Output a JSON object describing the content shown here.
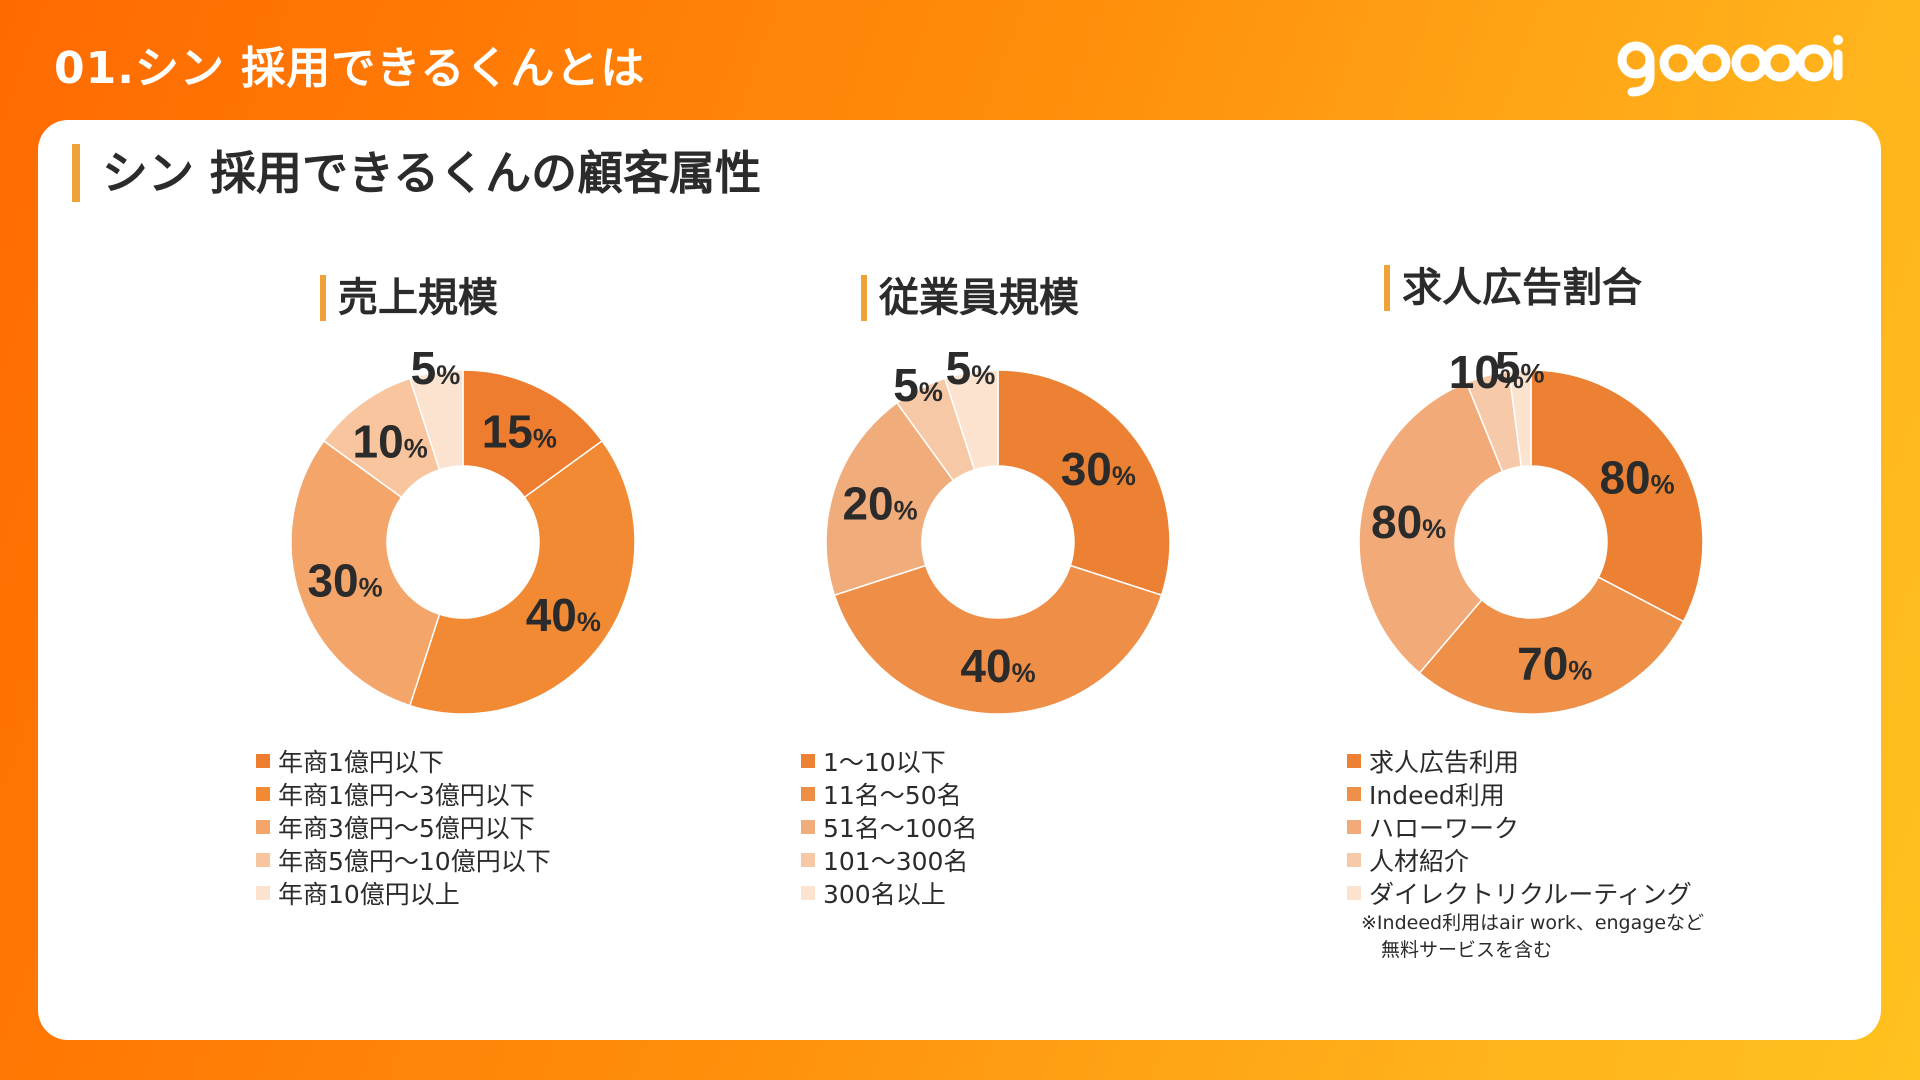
{
  "header": {
    "title": "01.シン 採用できるくんとは"
  },
  "section": {
    "title": "シン 採用できるくんの顧客属性"
  },
  "chart_data": [
    {
      "type": "pie",
      "title": "売上規模",
      "categories": [
        "年商1億円以下",
        "年商1億円〜3億円以下",
        "年商3億円〜5億円以下",
        "年商5億円〜10億円以下",
        "年商10億円以上"
      ],
      "values": [
        15,
        40,
        30,
        10,
        5
      ],
      "labels": [
        "15",
        "40",
        "30",
        "10",
        "5"
      ],
      "unit": "%",
      "colors": [
        "#ee7d2f",
        "#f28933",
        "#f4a56a",
        "#f8c59e",
        "#fbe3d0"
      ]
    },
    {
      "type": "pie",
      "title": "従業員規模",
      "categories": [
        "1〜10以下",
        "11名〜50名",
        "51名〜100名",
        "101〜300名",
        "300名以上"
      ],
      "values": [
        30,
        40,
        20,
        5,
        5
      ],
      "labels": [
        "30",
        "40",
        "20",
        "5",
        "5"
      ],
      "unit": "%",
      "colors": [
        "#ec8133",
        "#ef8e46",
        "#f1ac7b",
        "#f6c8a6",
        "#fbe3d0"
      ]
    },
    {
      "type": "pie",
      "title": "求人広告割合",
      "categories": [
        "求人広告利用",
        "Indeed利用",
        "ハローワーク",
        "人材紹介",
        "ダイレクトリクルーティング"
      ],
      "values": [
        80,
        70,
        80,
        10,
        5
      ],
      "labels": [
        "80",
        "70",
        "80",
        "10",
        "5"
      ],
      "unit": "%",
      "colors": [
        "#ec8133",
        "#ef9049",
        "#f2aa78",
        "#f6caa8",
        "#fbe3d0"
      ],
      "note": [
        "※Indeed利用はair work、engageなど",
        "無料サービスを含む"
      ]
    }
  ]
}
